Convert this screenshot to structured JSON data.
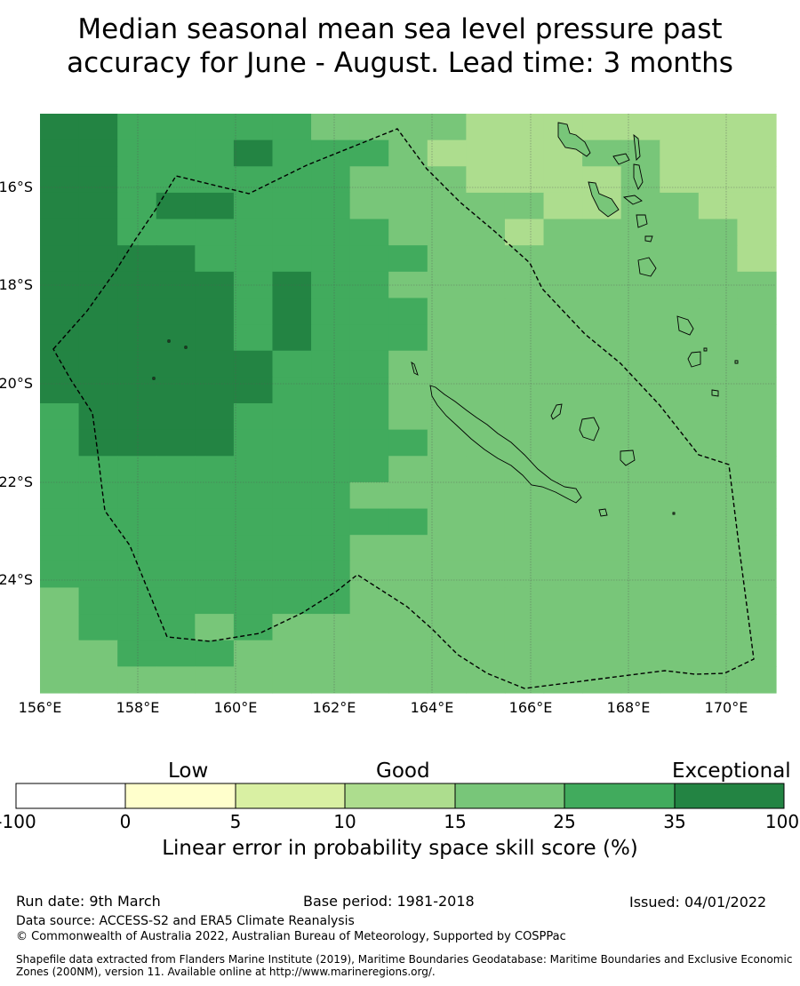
{
  "title": {
    "line1": "Median seasonal mean sea level pressure past",
    "line2": "accuracy for June - August. Lead time: 3 months"
  },
  "map": {
    "lon_labels": [
      "156°E",
      "158°E",
      "160°E",
      "162°E",
      "164°E",
      "166°E",
      "168°E",
      "170°E"
    ],
    "lat_labels": [
      "16°S",
      "18°S",
      "20°S",
      "22°S",
      "24°S"
    ],
    "lon_range": [
      156,
      171
    ],
    "lat_range": [
      -26.5,
      -14.7
    ]
  },
  "colorbar": {
    "categories": [
      "Low",
      "Good",
      "Exceptional"
    ],
    "ticks": [
      "-100",
      "0",
      "5",
      "10",
      "15",
      "25",
      "35",
      "100"
    ],
    "colors": [
      "#ffffff",
      "#ffffcc",
      "#d9f0a3",
      "#addd8e",
      "#78c679",
      "#41ab5d",
      "#238443"
    ],
    "label": "Linear error in probability space skill score (%)"
  },
  "footer": {
    "run_date": "Run date: 9th March",
    "base_period": "Base period: 1981-2018",
    "issued": "Issued: 04/01/2022",
    "data_source": "Data source: ACCESS-S2 and ERA5 Climate Reanalysis",
    "copyright": "© Commonwealth of Australia 2022, Australian Bureau of Meteorology, Supported by COSPPac",
    "shapefile_line1": "Shapefile data extracted from Flanders Marine Institute (2019), Maritime Boundaries Geodatabase: Maritime Boundaries and Exclusive Economic",
    "shapefile_line2": "Zones (200NM), version 11. Available online at http://www.marineregions.org/."
  }
}
